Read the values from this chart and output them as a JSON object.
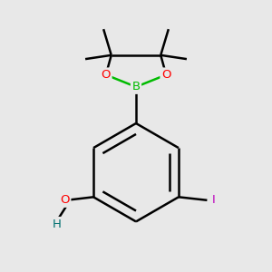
{
  "background_color": "#e8e8e8",
  "atom_colors": {
    "C": "#000000",
    "H": "#000000",
    "O": "#ff0000",
    "B": "#00bb00",
    "I": "#bb00bb",
    "OH_H": "#007070"
  },
  "bond_color": "#000000",
  "bond_width": 1.8,
  "figsize": [
    3.0,
    3.0
  ],
  "dpi": 100
}
